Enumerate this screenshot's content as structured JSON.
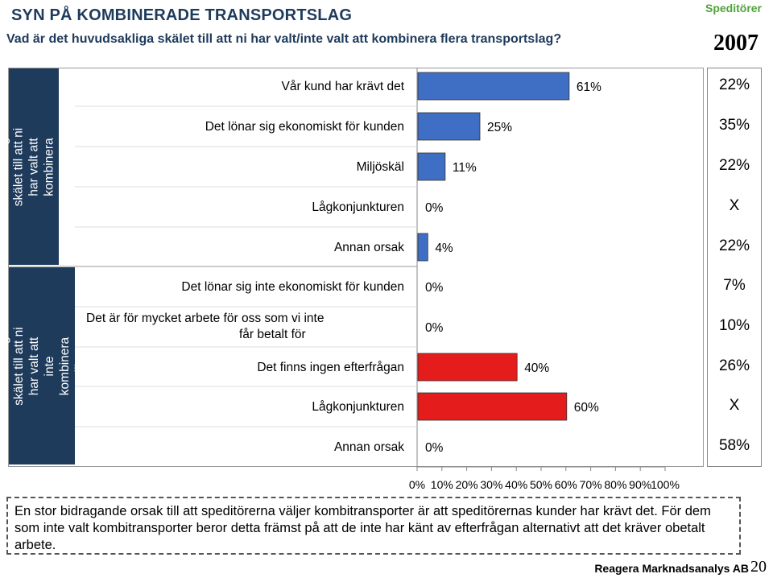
{
  "header": {
    "title": "SYN PÅ KOMBINERADE TRANSPORTSLAG",
    "subtitle": "Vad är det huvudsakliga skälet till att ni har valt/inte valt att kombinera flera transportslag?",
    "corner_label": "Speditörer",
    "year": "2007"
  },
  "sections": [
    {
      "label": "Vad är det huvudsakliga skälet till att ni har valt att kombinera flera transportslag?",
      "color": "#1f3b5c"
    },
    {
      "label": "Vad är det huvudsakliga skälet till att ni har valt att inte kombinera olika transportslag?",
      "color": "#1f3b5c"
    }
  ],
  "comparison_values": [
    "22%",
    "35%",
    "22%",
    "X",
    "22%",
    "7%",
    "10%",
    "26%",
    "X",
    "58%"
  ],
  "chart_data": {
    "type": "bar",
    "orientation": "horizontal",
    "categories": [
      "Vår kund har krävt det",
      "Det lönar sig ekonomiskt för kunden",
      "Miljöskäl",
      "Lågkonjunkturen",
      "Annan orsak",
      "Det lönar sig inte ekonomiskt för kunden",
      "Det är för mycket arbete för oss som vi inte får betalt för",
      "Det finns ingen efterfrågan",
      "Lågkonjunkturen",
      "Annan orsak"
    ],
    "values": [
      61,
      25,
      11,
      0,
      4,
      0,
      0,
      40,
      60,
      0
    ],
    "data_labels": [
      "61%",
      "25%",
      "11%",
      "0%",
      "4%",
      "0%",
      "0%",
      "40%",
      "60%",
      "0%"
    ],
    "bar_colors": [
      "#3f6fc4",
      "#3f6fc4",
      "#3f6fc4",
      "#3f6fc4",
      "#3f6fc4",
      "#e41c1c",
      "#e41c1c",
      "#e41c1c",
      "#e41c1c",
      "#e41c1c"
    ],
    "x_ticks": [
      "0%",
      "10%",
      "20%",
      "30%",
      "40%",
      "50%",
      "60%",
      "70%",
      "80%",
      "90%",
      "100%"
    ],
    "xlim": [
      0,
      100
    ],
    "grid": false
  },
  "footer": {
    "note": "En stor bidragande orsak till att speditörerna väljer kombitransporter är att speditörernas kunder har krävt det. För dem som inte valt kombitransporter beror detta främst på att de inte har känt av efterfrågan alternativt att det kräver obetalt arbete.",
    "brand": "Reagera Marknadsanalys AB",
    "page_number": "20"
  }
}
